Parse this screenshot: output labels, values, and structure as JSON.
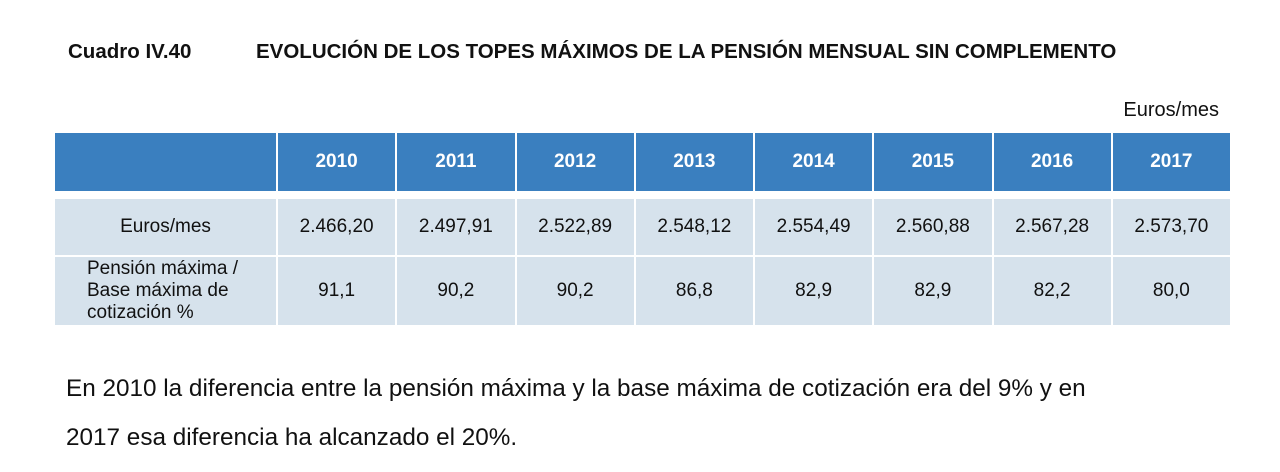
{
  "caption": {
    "label": "Cuadro IV.40",
    "title": "EVOLUCIÓN DE LOS TOPES MÁXIMOS DE LA PENSIÓN MENSUAL SIN COMPLEMENTO"
  },
  "units": "Euros/mes",
  "table": {
    "header_blank": "",
    "years": [
      "2010",
      "2011",
      "2012",
      "2013",
      "2014",
      "2015",
      "2016",
      "2017"
    ],
    "rows": [
      {
        "label": "Euros/mes",
        "values": [
          "2.466,20",
          "2.497,91",
          "2.522,89",
          "2.548,12",
          "2.554,49",
          "2.560,88",
          "2.567,28",
          "2.573,70"
        ]
      },
      {
        "label_lines": [
          "Pensión máxima /",
          "Base máxima de",
          "cotización %"
        ],
        "values": [
          "91,1",
          "90,2",
          "90,2",
          "86,8",
          "82,9",
          "82,9",
          "82,2",
          "80,0"
        ]
      }
    ]
  },
  "paragraph": {
    "line1": "En 2010 la diferencia entre la pensión máxima y la base máxima de cotización era del 9% y en",
    "line2": "2017 esa diferencia ha alcanzado el 20%."
  }
}
